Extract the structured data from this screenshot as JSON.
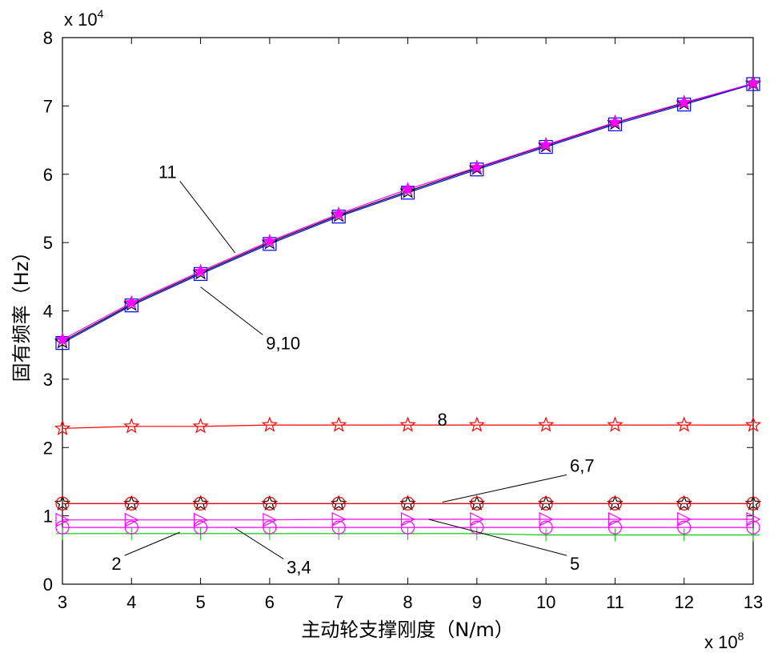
{
  "chart_data": {
    "type": "line",
    "xlabel": "主动轮支撑刚度（N/m）",
    "ylabel": "固有频率（Hz）",
    "x_multiplier": "x 10",
    "x_exponent": "8",
    "y_multiplier": "x 10",
    "y_exponent": "4",
    "xlim": [
      3,
      13
    ],
    "ylim": [
      0,
      80000
    ],
    "x_ticks": [
      3,
      4,
      5,
      6,
      7,
      8,
      9,
      10,
      11,
      12,
      13
    ],
    "y_ticks": [
      0,
      10000,
      20000,
      30000,
      40000,
      50000,
      60000,
      70000,
      80000
    ],
    "y_tick_labels": [
      "0",
      "1",
      "2",
      "3",
      "4",
      "5",
      "6",
      "7",
      "8"
    ],
    "grid": false,
    "x": [
      3,
      4,
      5,
      6,
      7,
      8,
      9,
      10,
      11,
      12,
      13
    ],
    "series": [
      {
        "color": "#00cc00",
        "marker": "plus",
        "values": [
          7400,
          7400,
          7400,
          7400,
          7400,
          7400,
          7400,
          7200,
          7200,
          7200,
          7200
        ]
      },
      {
        "color": "#ff00ff",
        "marker": "circle",
        "values": [
          8300,
          8300,
          8300,
          8300,
          8300,
          8300,
          8300,
          8300,
          8300,
          8300,
          8300
        ]
      },
      {
        "color": "#ff00ff",
        "marker": "triangle-right",
        "values": [
          9400,
          9400,
          9400,
          9400,
          9500,
          9500,
          9500,
          9500,
          9500,
          9500,
          9500
        ]
      },
      {
        "color": "#000000",
        "marker": "star",
        "values": [
          11800,
          11800,
          11800,
          11800,
          11800,
          11800,
          11800,
          11800,
          11800,
          11800,
          11800
        ]
      },
      {
        "color": "#ff0000",
        "marker": "circle",
        "values": [
          11800,
          11800,
          11800,
          11800,
          11800,
          11800,
          11800,
          11800,
          11800,
          11800,
          11800
        ]
      },
      {
        "color": "#ff0000",
        "marker": "star",
        "values": [
          22800,
          23100,
          23100,
          23300,
          23300,
          23300,
          23300,
          23300,
          23300,
          23300,
          23300
        ]
      },
      {
        "color": "#0000ff",
        "marker": "square",
        "values": [
          35300,
          40800,
          45400,
          49800,
          53800,
          57300,
          60700,
          64000,
          67300,
          70200,
          73200
        ]
      },
      {
        "color": "#000000",
        "marker": "star",
        "values": [
          35500,
          41000,
          45600,
          50000,
          54000,
          57500,
          60900,
          64200,
          67500,
          70400,
          73300
        ]
      },
      {
        "color": "#ff00ff",
        "marker": "filled-star",
        "values": [
          35800,
          41200,
          45800,
          50200,
          54200,
          57800,
          61000,
          64300,
          67600,
          70500,
          73300
        ]
      }
    ],
    "annotations": [
      {
        "text": "11",
        "x": 4.7,
        "y": 59000,
        "ax": 5.5,
        "ay": 48500
      },
      {
        "text": "9,10",
        "x": 5.9,
        "y": 36500,
        "ax": 5.0,
        "ay": 43500
      },
      {
        "text": "8",
        "x": 8.5,
        "y": 25300
      },
      {
        "text": "6,7",
        "x": 10.3,
        "y": 16000,
        "ax": 8.5,
        "ay": 12000
      },
      {
        "text": "5",
        "x": 10.3,
        "y": 4200,
        "ax": 8.3,
        "ay": 9500
      },
      {
        "text": "2",
        "x": 3.9,
        "y": 4200,
        "ax": 4.7,
        "ay": 7600
      },
      {
        "text": "3,4",
        "x": 6.2,
        "y": 3700,
        "ax": 5.5,
        "ay": 8200
      }
    ]
  }
}
